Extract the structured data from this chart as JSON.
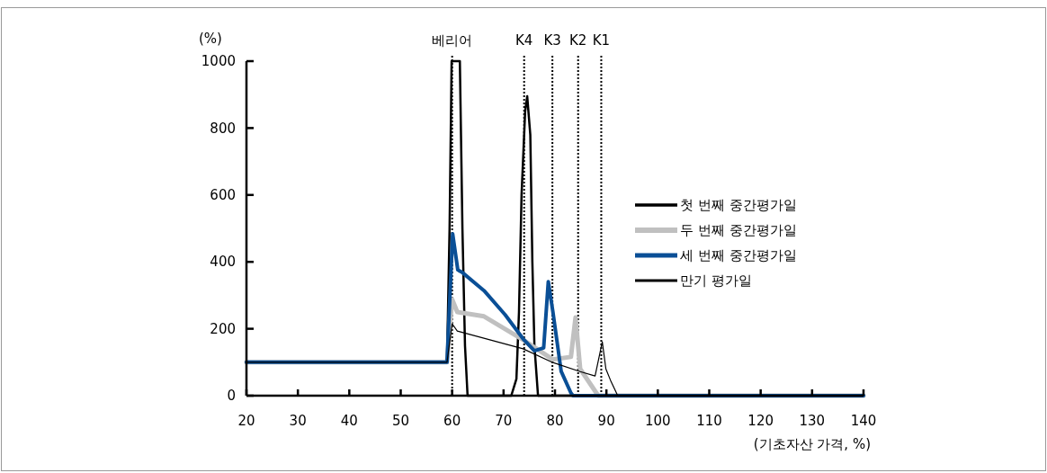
{
  "chart_data": {
    "type": "line",
    "xlabel": "(기초자산 가격, %)",
    "ylabel": "(%)",
    "xlim": [
      20,
      140
    ],
    "xticks": [
      20,
      30,
      40,
      50,
      60,
      70,
      80,
      90,
      100,
      110,
      120,
      130,
      140
    ],
    "ylim": [
      0,
      1000
    ],
    "yticks": [
      0,
      200,
      400,
      600,
      800,
      1000
    ],
    "grid": false,
    "legend": "right",
    "series": [
      {
        "name": "첫 번째 중간평가일",
        "color": "#000000",
        "x": [
          20,
          59,
          59.5,
          59.9,
          61.5,
          62,
          62.5,
          63,
          71.5,
          72.5,
          73,
          73.5,
          74.2,
          74.6,
          75.2,
          75.6,
          76,
          76.7,
          140
        ],
        "values": [
          100,
          100,
          500,
          1000,
          1000,
          500,
          150,
          0,
          0,
          50,
          250,
          600,
          850,
          895,
          780,
          400,
          150,
          0,
          0
        ]
      },
      {
        "name": "두 번째 중간평가일",
        "color": "#c0c0c0",
        "x": [
          20,
          59,
          60,
          61,
          66.2,
          73.8,
          79.6,
          83.1,
          84,
          84.9,
          88.4,
          140
        ],
        "values": [
          100,
          100,
          288,
          250,
          237,
          167,
          108,
          116,
          234,
          80,
          0,
          0
        ]
      },
      {
        "name": "세 번째 중간평가일",
        "color": "#0a4f96",
        "x": [
          20,
          59,
          60.1,
          61.1,
          62,
          66.2,
          70.3,
          73.8,
          76,
          77.8,
          78.7,
          79.6,
          81.2,
          83.1,
          83.5,
          140
        ],
        "values": [
          100,
          100,
          484,
          376,
          368,
          314,
          242,
          170,
          134,
          143,
          341,
          250,
          73,
          8,
          0,
          0
        ]
      },
      {
        "name": "만기 평가일",
        "color": "#000000",
        "x": [
          20,
          59,
          60,
          61,
          73.8,
          79.6,
          84.9,
          87.8,
          89.2,
          89.9,
          90.8,
          92.2,
          140
        ],
        "values": [
          100,
          100,
          215,
          193,
          140,
          99,
          72,
          59,
          161,
          80,
          46,
          0,
          0
        ]
      }
    ],
    "ref_lines": [
      {
        "axis": "x",
        "value": 60,
        "label": "베리어",
        "color": "#000000",
        "line_style": "dotted"
      },
      {
        "axis": "x",
        "value": 74,
        "label": "K4",
        "color": "#000000",
        "line_style": "dotted"
      },
      {
        "axis": "x",
        "value": 79.5,
        "label": "K3",
        "color": "#000000",
        "line_style": "dotted"
      },
      {
        "axis": "x",
        "value": 84.5,
        "label": "K2",
        "color": "#000000",
        "line_style": "dotted"
      },
      {
        "axis": "x",
        "value": 89,
        "label": "K1",
        "color": "#000000",
        "line_style": "dotted"
      }
    ]
  }
}
